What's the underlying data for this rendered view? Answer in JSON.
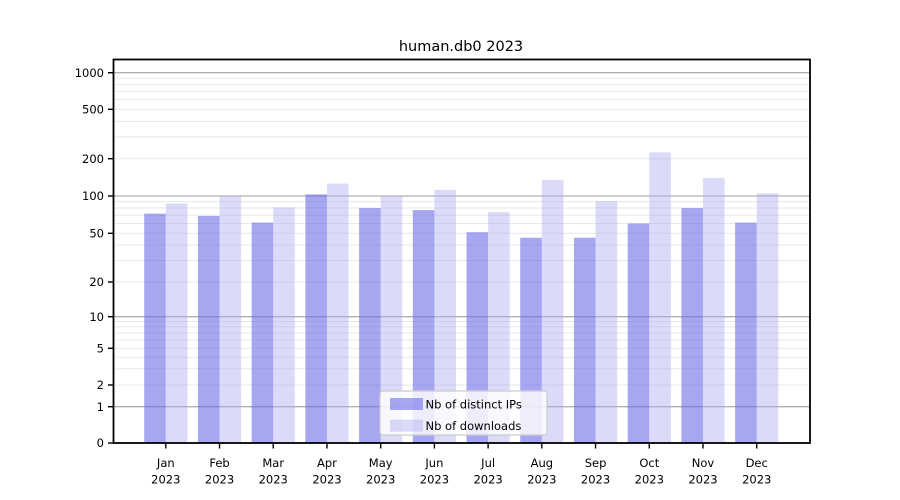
{
  "title": "human.db0 2023",
  "chart_data": {
    "type": "bar",
    "title": "human.db0 2023",
    "categories": [
      "Jan 2023",
      "Feb 2023",
      "Mar 2023",
      "Apr 2023",
      "May 2023",
      "Jun 2023",
      "Jul 2023",
      "Aug 2023",
      "Sep 2023",
      "Oct 2023",
      "Nov 2023",
      "Dec 2023"
    ],
    "series": [
      {
        "name": "Nb of distinct IPs",
        "values": [
          72,
          69,
          61,
          103,
          80,
          77,
          51,
          46,
          46,
          60,
          80,
          61
        ],
        "fill": "rgba(108,108,232,0.60)",
        "composite_hex": "#a7a7f1"
      },
      {
        "name": "Nb of downloads",
        "values": [
          87,
          100,
          81,
          126,
          100,
          112,
          74,
          135,
          91,
          225,
          140,
          105
        ],
        "fill": "rgba(175,175,242,0.45)",
        "composite_hex": "#dbdbf9"
      }
    ],
    "xlabel": "",
    "ylabel": "",
    "y_scale": "asinh (log-like above 1, linear near 0)",
    "y_ticks": [
      0,
      1,
      2,
      5,
      10,
      20,
      50,
      100,
      200,
      500,
      1000
    ],
    "ylim": [
      0,
      1280
    ],
    "grid": true,
    "legend_position": "lower center",
    "colors": {
      "grid_major": "#b0b0b0",
      "grid_minor": "#e8e8e8",
      "axis": "#000000",
      "background": "#ffffff",
      "legend_border": "#cccccc",
      "legend_fill": "rgba(255,255,255,0.8)"
    }
  }
}
